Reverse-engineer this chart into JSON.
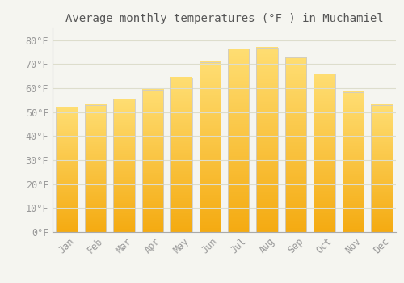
{
  "title": "Average monthly temperatures (°F ) in Muchamiel",
  "months": [
    "Jan",
    "Feb",
    "Mar",
    "Apr",
    "May",
    "Jun",
    "Jul",
    "Aug",
    "Sep",
    "Oct",
    "Nov",
    "Dec"
  ],
  "values": [
    52,
    53,
    55.5,
    59.5,
    64.5,
    71,
    76.5,
    77,
    73,
    66,
    58.5,
    53
  ],
  "bar_color_top": "#F5A800",
  "bar_color_bottom": "#FFD966",
  "bar_edge_color": "#CCCCCC",
  "background_color": "#F5F5F0",
  "grid_color": "#DDDDCC",
  "text_color": "#999999",
  "title_color": "#555555",
  "ylim": [
    0,
    85
  ],
  "yticks": [
    0,
    10,
    20,
    30,
    40,
    50,
    60,
    70,
    80
  ],
  "ytick_labels": [
    "0°F",
    "10°F",
    "20°F",
    "30°F",
    "40°F",
    "50°F",
    "60°F",
    "70°F",
    "80°F"
  ],
  "font_family": "monospace",
  "title_fontsize": 10,
  "tick_fontsize": 8.5,
  "bar_width": 0.75
}
